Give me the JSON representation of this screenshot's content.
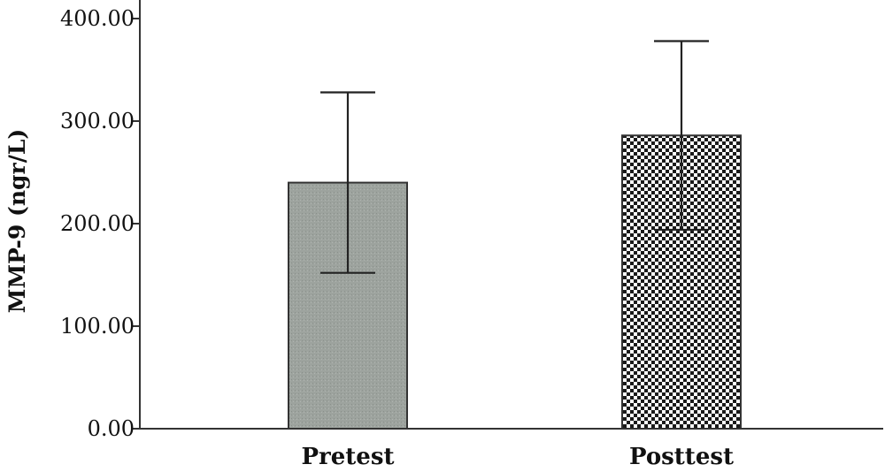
{
  "chart_data": {
    "type": "bar",
    "title": "",
    "xlabel": "",
    "ylabel": "MMP-9 (ngr/L)",
    "categories": [
      "Pretest",
      "Posttest"
    ],
    "values": [
      240,
      286
    ],
    "error_upper": [
      328,
      378
    ],
    "error_lower": [
      152,
      194
    ],
    "ylim": [
      0,
      400
    ],
    "yticks": [
      "0.00",
      "100.00",
      "200.00",
      "300.00",
      "400.00"
    ],
    "yticks_values": [
      0,
      100,
      200,
      300,
      400
    ],
    "bar_fills": [
      "dotted-gray",
      "checkerboard"
    ],
    "colors": {
      "pretest": "#9da39e",
      "checker_dark": "#1a1a1a",
      "checker_light": "#ffffff"
    },
    "grid": false,
    "legend": "none"
  }
}
